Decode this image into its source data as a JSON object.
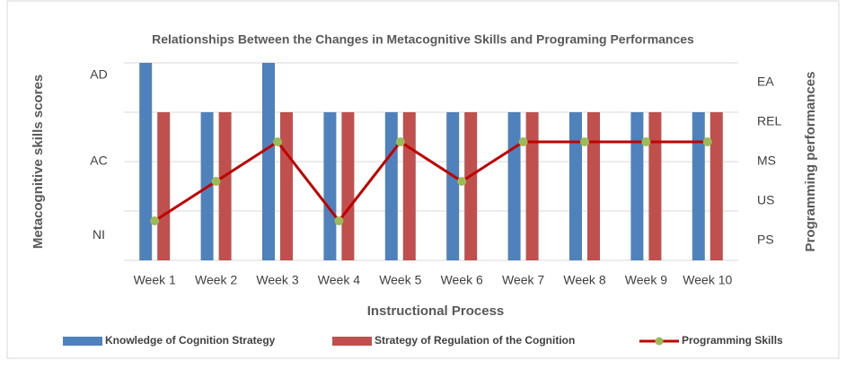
{
  "chart_data": {
    "type": "bar_line",
    "title": "Relationships Between the Changes in Metacognitive Skills and Programing Performances",
    "x_label": "Instructional Process",
    "y_label": "Metacognitive skills scores",
    "y2_label": "Programming performances",
    "categories": [
      "Week 1",
      "Week 2",
      "Week 3",
      "Week 4",
      "Week 5",
      "Week 6",
      "Week 7",
      "Week 8",
      "Week 9",
      "Week 10"
    ],
    "series": [
      {
        "name": "Knowledge of Cognition Strategy",
        "color": "#4f81bd",
        "type": "bar",
        "values": [
          4,
          3,
          4,
          3,
          3,
          3,
          3,
          3,
          3,
          3
        ]
      },
      {
        "name": "Strategy of Regulation of the Cognition",
        "color": "#c0504d",
        "type": "bar",
        "values": [
          3,
          3,
          3,
          3,
          3,
          3,
          3,
          3,
          3,
          3
        ]
      },
      {
        "name": "Programming Skills",
        "color": "#c00000",
        "marker_color": "#9bbb59",
        "type": "line",
        "axis": "y2",
        "values": [
          1.5,
          2.5,
          3.5,
          1.5,
          3.5,
          2.5,
          3.5,
          3.5,
          3.5,
          3.5
        ]
      }
    ],
    "ylim": [
      0,
      4
    ],
    "yticks": [
      {
        "value": 0.5,
        "label": "NI"
      },
      {
        "value": 2,
        "label": "AC"
      },
      {
        "value": 3.75,
        "label": "AD"
      }
    ],
    "ygrid": [
      0,
      1,
      2,
      3,
      4
    ],
    "y2lim": [
      0.5,
      5.5
    ],
    "y2ticks": [
      {
        "value": 1,
        "label": "PS"
      },
      {
        "value": 2,
        "label": "US"
      },
      {
        "value": 3,
        "label": "MS"
      },
      {
        "value": 4,
        "label": "REL"
      },
      {
        "value": 5,
        "label": "EA"
      }
    ],
    "grid": true
  }
}
